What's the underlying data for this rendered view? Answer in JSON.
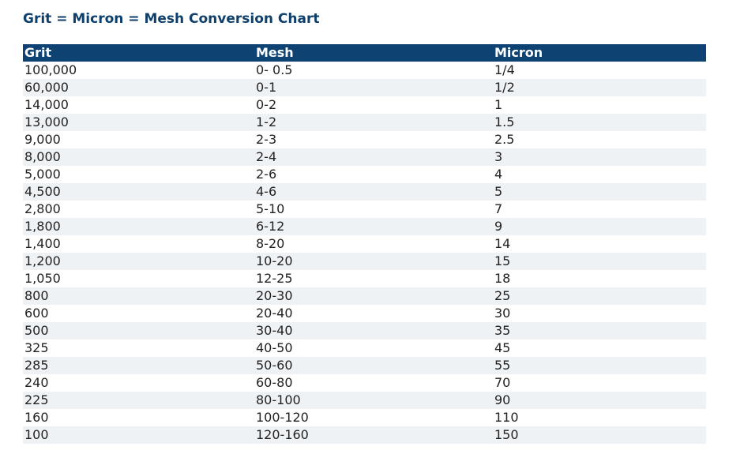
{
  "title": "Grit = Micron = Mesh Conversion Chart",
  "table": {
    "headers": [
      "Grit",
      "Mesh",
      "Micron"
    ],
    "rows": [
      [
        "100,000",
        "0- 0.5",
        "1/4"
      ],
      [
        "60,000",
        "0-1",
        "1/2"
      ],
      [
        "14,000",
        "0-2",
        "1"
      ],
      [
        "13,000",
        "1-2",
        "1.5"
      ],
      [
        "9,000",
        "2-3",
        "2.5"
      ],
      [
        "8,000",
        "2-4",
        "3"
      ],
      [
        "5,000",
        "2-6",
        "4"
      ],
      [
        "4,500",
        "4-6",
        "5"
      ],
      [
        "2,800",
        "5-10",
        "7"
      ],
      [
        "1,800",
        "6-12",
        "9"
      ],
      [
        "1,400",
        "8-20",
        "14"
      ],
      [
        "1,200",
        "10-20",
        "15"
      ],
      [
        "1,050",
        "12-25",
        "18"
      ],
      [
        "800",
        "20-30",
        "25"
      ],
      [
        "600",
        "20-40",
        "30"
      ],
      [
        "500",
        "30-40",
        "35"
      ],
      [
        "325",
        "40-50",
        "45"
      ],
      [
        "285",
        "50-60",
        "55"
      ],
      [
        "240",
        "60-80",
        "70"
      ],
      [
        "225",
        "80-100",
        "90"
      ],
      [
        "160",
        "100-120",
        "110"
      ],
      [
        "100",
        "120-160",
        "150"
      ]
    ]
  },
  "colors": {
    "title_text": "#0f3f6b",
    "header_bg": "#0d4272",
    "header_text": "#ffffff",
    "stripe_bg": "#eff2f5"
  }
}
